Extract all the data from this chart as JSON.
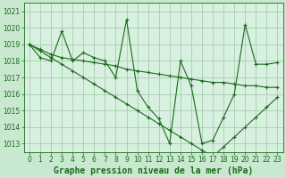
{
  "title": "Graphe pression niveau de la mer (hPa)",
  "background_color": "#c8e8d0",
  "plot_bg_color": "#d8f0e0",
  "line_color": "#1a6b1a",
  "grid_color": "#a8ccb0",
  "xlim": [
    -0.5,
    23.5
  ],
  "ylim": [
    1012.5,
    1021.5
  ],
  "yticks": [
    1013,
    1014,
    1015,
    1016,
    1017,
    1018,
    1019,
    1020,
    1021
  ],
  "xticks": [
    0,
    1,
    2,
    3,
    4,
    5,
    6,
    7,
    8,
    9,
    10,
    11,
    12,
    13,
    14,
    15,
    16,
    17,
    18,
    19,
    20,
    21,
    22,
    23
  ],
  "series": [
    [
      1019.0,
      1018.2,
      1018.0,
      1019.8,
      1018.0,
      1018.5,
      1018.2,
      1018.0,
      1017.0,
      1020.5,
      1016.2,
      1015.2,
      1014.5,
      1013.0,
      1018.0,
      1016.5,
      1013.0,
      1013.2,
      1014.6,
      1016.0,
      1020.2,
      1017.8,
      1017.8,
      1017.9
    ],
    [
      1019.0,
      1018.7,
      1018.4,
      1018.2,
      1018.1,
      1018.0,
      1017.9,
      1017.8,
      1017.7,
      1017.5,
      1017.4,
      1017.3,
      1017.2,
      1017.1,
      1017.0,
      1016.9,
      1016.8,
      1016.7,
      1016.7,
      1016.6,
      1016.5,
      1016.5,
      1016.4,
      1016.4
    ],
    [
      1019.0,
      1018.6,
      1018.2,
      1017.8,
      1017.4,
      1017.0,
      1016.6,
      1016.2,
      1015.8,
      1015.4,
      1015.0,
      1014.6,
      1014.2,
      1013.8,
      1013.4,
      1013.0,
      1012.6,
      1012.2,
      1012.8,
      1013.4,
      1014.0,
      1014.6,
      1015.2,
      1015.8
    ]
  ],
  "title_fontsize": 7,
  "tick_fontsize": 5.5,
  "title_color": "#1a6b1a",
  "title_fontweight": "bold"
}
